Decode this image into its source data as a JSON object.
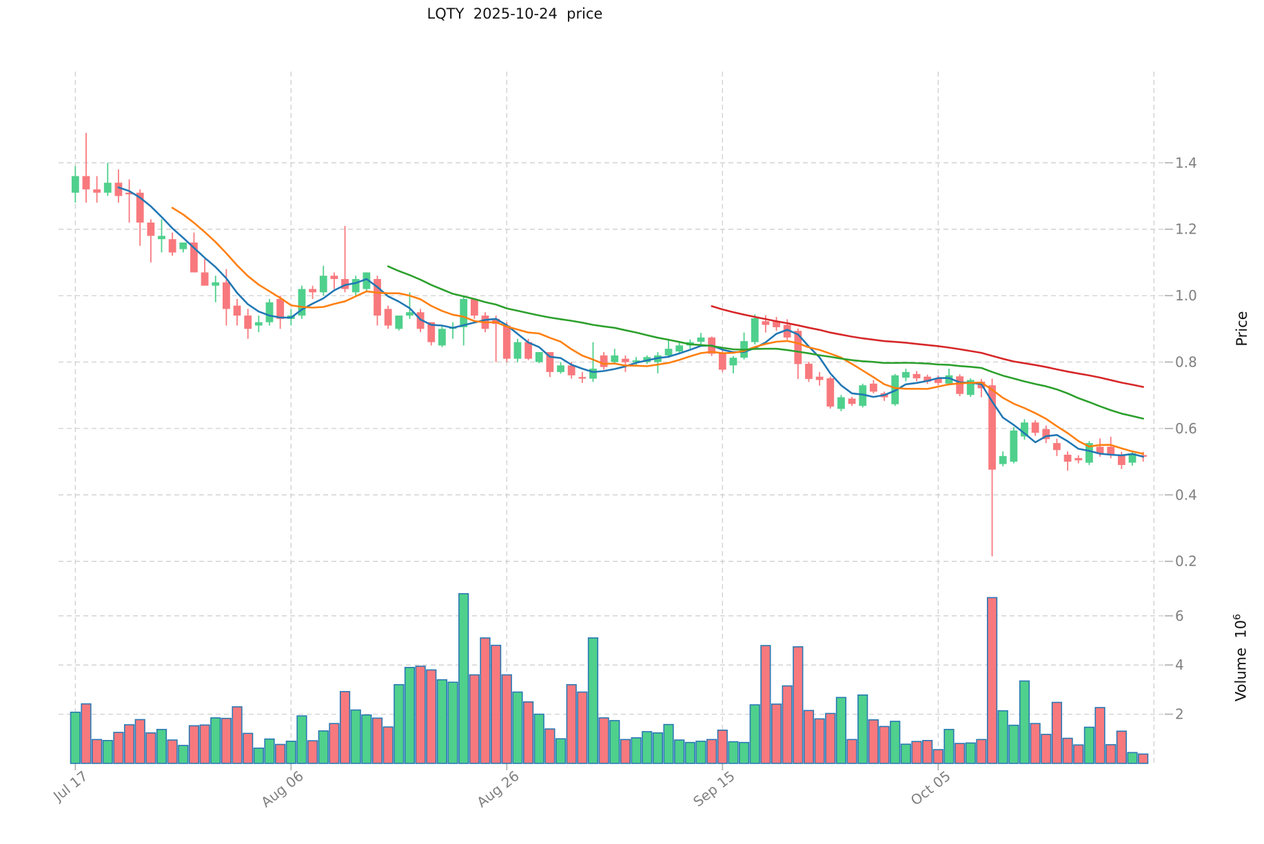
{
  "title": "LQTY  2025-10-24  price",
  "chart_data": {
    "type": "candlestick",
    "has_volume_subpanel": true,
    "start_date": "2025-07-17",
    "end_date": "2025-10-24",
    "x_axis": {
      "tick_labels": [
        "Jul 17",
        "Aug 06",
        "Aug 26",
        "Sep 15",
        "Oct 05"
      ],
      "tick_day_indices": [
        0,
        20,
        40,
        60,
        80
      ],
      "extra_gridline_day_index": 100
    },
    "price_axis": {
      "label": "Price",
      "ticks": [
        0.2,
        0.4,
        0.6,
        0.8,
        1.0,
        1.2,
        1.4
      ],
      "range": [
        0.15,
        1.55
      ]
    },
    "volume_axis": {
      "label": "Volume",
      "unit_base": "10",
      "unit_exponent": "6",
      "ticks": [
        2,
        4,
        6
      ]
    },
    "moving_averages": [
      {
        "window": 5,
        "color": "#2077b4"
      },
      {
        "window": 10,
        "color": "#ff7f0e"
      },
      {
        "window": 30,
        "color": "#2ca02c"
      },
      {
        "window": 60,
        "color": "#d62728"
      }
    ],
    "colors": {
      "up": "#4fd08c",
      "down": "#f8797d",
      "volume_edge": "#2878b4",
      "grid": "#cfcfcf",
      "tick_mark": "#b3b3b3",
      "tick_text": "#7f7f7f",
      "title_text": "#141414"
    },
    "grid": true,
    "ohlc": [
      [
        1.31,
        1.39,
        1.28,
        1.36
      ],
      [
        1.36,
        1.49,
        1.28,
        1.32
      ],
      [
        1.32,
        1.36,
        1.28,
        1.31
      ],
      [
        1.31,
        1.4,
        1.3,
        1.34
      ],
      [
        1.34,
        1.38,
        1.28,
        1.3
      ],
      [
        1.31,
        1.35,
        1.22,
        1.305
      ],
      [
        1.31,
        1.32,
        1.15,
        1.22
      ],
      [
        1.22,
        1.23,
        1.1,
        1.18
      ],
      [
        1.17,
        1.23,
        1.13,
        1.18
      ],
      [
        1.17,
        1.19,
        1.12,
        1.13
      ],
      [
        1.14,
        1.16,
        1.13,
        1.16
      ],
      [
        1.16,
        1.19,
        1.07,
        1.07
      ],
      [
        1.07,
        1.11,
        1.03,
        1.03
      ],
      [
        1.03,
        1.06,
        0.98,
        1.04
      ],
      [
        1.04,
        1.08,
        0.91,
        0.96
      ],
      [
        0.97,
        0.99,
        0.91,
        0.94
      ],
      [
        0.94,
        0.96,
        0.87,
        0.9
      ],
      [
        0.91,
        0.94,
        0.89,
        0.92
      ],
      [
        0.92,
        0.99,
        0.91,
        0.98
      ],
      [
        0.99,
        1.0,
        0.9,
        0.93
      ],
      [
        0.93,
        0.96,
        0.91,
        0.94
      ],
      [
        0.94,
        1.03,
        0.93,
        1.02
      ],
      [
        1.02,
        1.03,
        0.99,
        1.01
      ],
      [
        1.01,
        1.09,
        1.0,
        1.06
      ],
      [
        1.06,
        1.07,
        1.02,
        1.05
      ],
      [
        1.05,
        1.21,
        1.01,
        1.02
      ],
      [
        1.01,
        1.06,
        1.0,
        1.05
      ],
      [
        1.02,
        1.07,
        1.01,
        1.07
      ],
      [
        1.05,
        1.06,
        0.91,
        0.94
      ],
      [
        0.96,
        0.97,
        0.9,
        0.91
      ],
      [
        0.9,
        0.94,
        0.895,
        0.94
      ],
      [
        0.94,
        1.01,
        0.93,
        0.95
      ],
      [
        0.95,
        0.96,
        0.89,
        0.9
      ],
      [
        0.92,
        0.92,
        0.85,
        0.86
      ],
      [
        0.85,
        0.91,
        0.845,
        0.9
      ],
      [
        0.9,
        0.92,
        0.87,
        0.905
      ],
      [
        0.905,
        1.0,
        0.85,
        0.99
      ],
      [
        0.99,
        0.99,
        0.93,
        0.94
      ],
      [
        0.94,
        0.95,
        0.89,
        0.9
      ],
      [
        0.93,
        0.94,
        0.8,
        0.915
      ],
      [
        0.91,
        0.92,
        0.8,
        0.81
      ],
      [
        0.81,
        0.87,
        0.8,
        0.86
      ],
      [
        0.86,
        0.87,
        0.806,
        0.81
      ],
      [
        0.8,
        0.83,
        0.797,
        0.83
      ],
      [
        0.83,
        0.83,
        0.755,
        0.77
      ],
      [
        0.77,
        0.8,
        0.765,
        0.79
      ],
      [
        0.79,
        0.8,
        0.75,
        0.76
      ],
      [
        0.755,
        0.77,
        0.737,
        0.75
      ],
      [
        0.75,
        0.86,
        0.74,
        0.78
      ],
      [
        0.82,
        0.83,
        0.777,
        0.785
      ],
      [
        0.8,
        0.84,
        0.798,
        0.82
      ],
      [
        0.81,
        0.82,
        0.77,
        0.8
      ],
      [
        0.8,
        0.815,
        0.79,
        0.805
      ],
      [
        0.8,
        0.82,
        0.794,
        0.815
      ],
      [
        0.8,
        0.83,
        0.766,
        0.82
      ],
      [
        0.82,
        0.87,
        0.813,
        0.84
      ],
      [
        0.832,
        0.861,
        0.827,
        0.85
      ],
      [
        0.85,
        0.868,
        0.84,
        0.86
      ],
      [
        0.861,
        0.888,
        0.853,
        0.874
      ],
      [
        0.874,
        0.877,
        0.818,
        0.825
      ],
      [
        0.829,
        0.834,
        0.77,
        0.777
      ],
      [
        0.79,
        0.818,
        0.766,
        0.813
      ],
      [
        0.813,
        0.889,
        0.808,
        0.863
      ],
      [
        0.86,
        0.944,
        0.853,
        0.932
      ],
      [
        0.923,
        0.941,
        0.889,
        0.912
      ],
      [
        0.922,
        0.936,
        0.894,
        0.905
      ],
      [
        0.912,
        0.929,
        0.867,
        0.874
      ],
      [
        0.894,
        0.901,
        0.749,
        0.794
      ],
      [
        0.795,
        0.801,
        0.74,
        0.749
      ],
      [
        0.756,
        0.77,
        0.729,
        0.746
      ],
      [
        0.751,
        0.756,
        0.66,
        0.666
      ],
      [
        0.659,
        0.701,
        0.652,
        0.694
      ],
      [
        0.69,
        0.695,
        0.668,
        0.674
      ],
      [
        0.668,
        0.735,
        0.663,
        0.73
      ],
      [
        0.735,
        0.746,
        0.706,
        0.711
      ],
      [
        0.706,
        0.711,
        0.683,
        0.694
      ],
      [
        0.673,
        0.764,
        0.668,
        0.76
      ],
      [
        0.753,
        0.78,
        0.742,
        0.77
      ],
      [
        0.764,
        0.773,
        0.742,
        0.751
      ],
      [
        0.756,
        0.762,
        0.734,
        0.741
      ],
      [
        0.751,
        0.76,
        0.73,
        0.737
      ],
      [
        0.735,
        0.78,
        0.73,
        0.76
      ],
      [
        0.757,
        0.763,
        0.697,
        0.704
      ],
      [
        0.701,
        0.751,
        0.695,
        0.746
      ],
      [
        0.741,
        0.749,
        0.694,
        0.721
      ],
      [
        0.73,
        0.75,
        0.215,
        0.476
      ],
      [
        0.493,
        0.531,
        0.486,
        0.517
      ],
      [
        0.5,
        0.604,
        0.495,
        0.594
      ],
      [
        0.576,
        0.628,
        0.566,
        0.618
      ],
      [
        0.618,
        0.625,
        0.578,
        0.587
      ],
      [
        0.598,
        0.609,
        0.556,
        0.568
      ],
      [
        0.556,
        0.569,
        0.517,
        0.535
      ],
      [
        0.521,
        0.531,
        0.473,
        0.5
      ],
      [
        0.511,
        0.519,
        0.495,
        0.504
      ],
      [
        0.497,
        0.562,
        0.49,
        0.556
      ],
      [
        0.545,
        0.57,
        0.515,
        0.525
      ],
      [
        0.545,
        0.575,
        0.51,
        0.52
      ],
      [
        0.52,
        0.53,
        0.478,
        0.49
      ],
      [
        0.497,
        0.53,
        0.488,
        0.525
      ],
      [
        0.52,
        0.53,
        0.5,
        0.515
      ]
    ],
    "volumes_millions": [
      2.08,
      2.42,
      0.97,
      0.93,
      1.26,
      1.57,
      1.78,
      1.24,
      1.38,
      0.95,
      0.73,
      1.53,
      1.56,
      1.85,
      1.83,
      2.3,
      1.22,
      0.62,
      0.99,
      0.77,
      0.9,
      1.93,
      0.92,
      1.32,
      1.62,
      2.92,
      2.17,
      1.97,
      1.84,
      1.48,
      3.2,
      3.9,
      3.95,
      3.8,
      3.4,
      3.3,
      6.9,
      3.6,
      5.1,
      4.8,
      3.6,
      2.9,
      2.5,
      2.0,
      1.4,
      1.0,
      3.2,
      2.9,
      5.1,
      1.85,
      1.74,
      0.97,
      1.04,
      1.29,
      1.24,
      1.58,
      0.95,
      0.85,
      0.9,
      0.97,
      1.35,
      0.88,
      0.85,
      2.38,
      4.79,
      2.41,
      3.15,
      4.74,
      2.15,
      1.81,
      2.03,
      2.68,
      0.97,
      2.78,
      1.77,
      1.5,
      1.71,
      0.78,
      0.89,
      0.93,
      0.56,
      1.38,
      0.81,
      0.83,
      0.97,
      6.74,
      2.14,
      1.55,
      3.35,
      1.62,
      1.18,
      2.48,
      1.02,
      0.75,
      1.47,
      2.27,
      0.76,
      1.31,
      0.44,
      0.38
    ]
  }
}
